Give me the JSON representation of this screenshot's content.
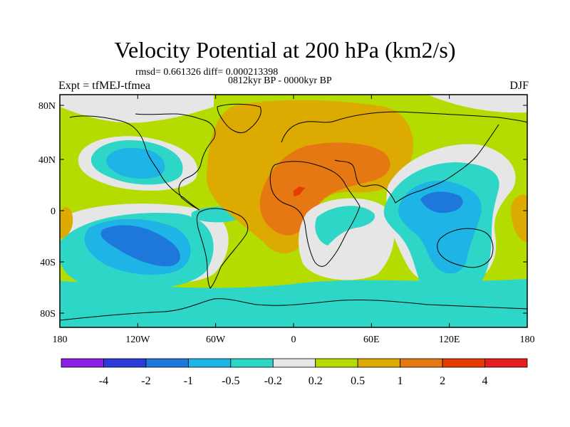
{
  "title": "Velocity Potential at 200 hPa (km2/s)",
  "stats": "rmsd= 0.661326 diff= 0.000213398",
  "period": "0812kyr BP - 0000kyr BP",
  "experiment": "Expt = tfMEJ-tfmea",
  "season": "DJF",
  "lat_ticks": [
    "80N",
    "40N",
    "0",
    "40S",
    "80S"
  ],
  "lon_ticks": [
    "180",
    "120W",
    "60W",
    "0",
    "60E",
    "120E",
    "180"
  ],
  "colorbar": {
    "labels": [
      "-4",
      "-2",
      "-1",
      "-0.5",
      "-0.2",
      "0.2",
      "0.5",
      "1",
      "2",
      "4"
    ],
    "colors": [
      "#8a1ee6",
      "#2a3bd9",
      "#1e78dc",
      "#1eb4e6",
      "#2ed6c8",
      "#e6e6e6",
      "#b4dc00",
      "#dcaa00",
      "#e67814",
      "#e63c00",
      "#e61e1e"
    ]
  },
  "field_colors": {
    "background": "#b4dc00",
    "neutral": "#e6e6e6",
    "weak_negative": "#2ed6c8",
    "moderate_negative": "#1eb4e6",
    "strong_negative": "#1e78dc",
    "weak_positive": "#dcaa00",
    "moderate_positive": "#e67814",
    "strong_positive": "#e63c00"
  }
}
